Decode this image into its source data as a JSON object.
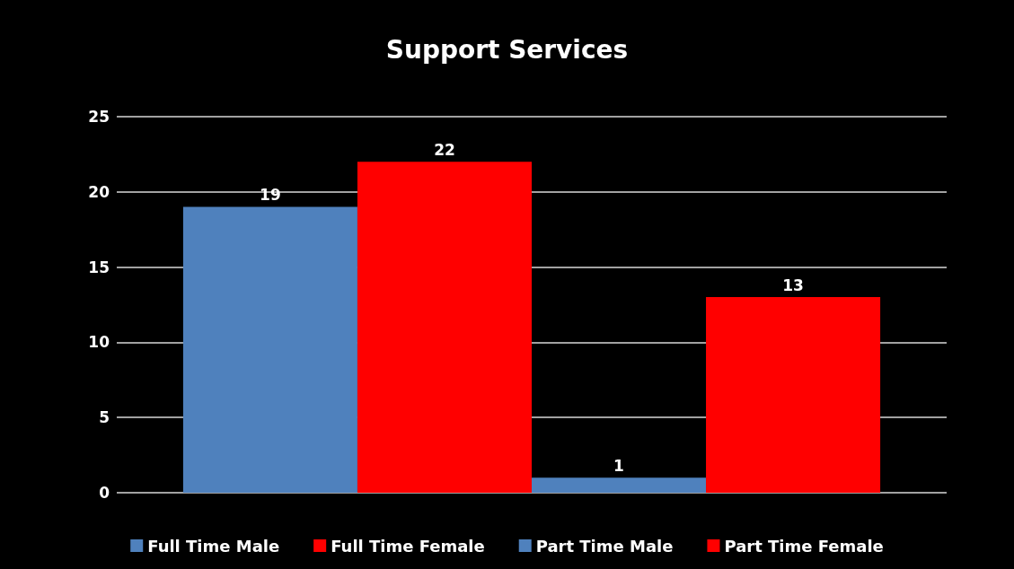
{
  "chart_data": {
    "type": "bar",
    "title": "Support Services",
    "categories": [
      null
    ],
    "series": [
      {
        "name": "Full Time Male",
        "color": "#4f81bd",
        "values": [
          19
        ]
      },
      {
        "name": "Full Time Female",
        "color": "#ff0000",
        "values": [
          22
        ]
      },
      {
        "name": "Part Time Male",
        "color": "#4f81bd",
        "values": [
          1
        ]
      },
      {
        "name": "Part Time Female",
        "color": "#ff0000",
        "values": [
          13
        ]
      }
    ],
    "ylim": [
      0,
      25
    ],
    "yticks": [
      0,
      5,
      10,
      15,
      20,
      25
    ],
    "grid": "y",
    "legend": "bottom",
    "data_labels": true
  }
}
